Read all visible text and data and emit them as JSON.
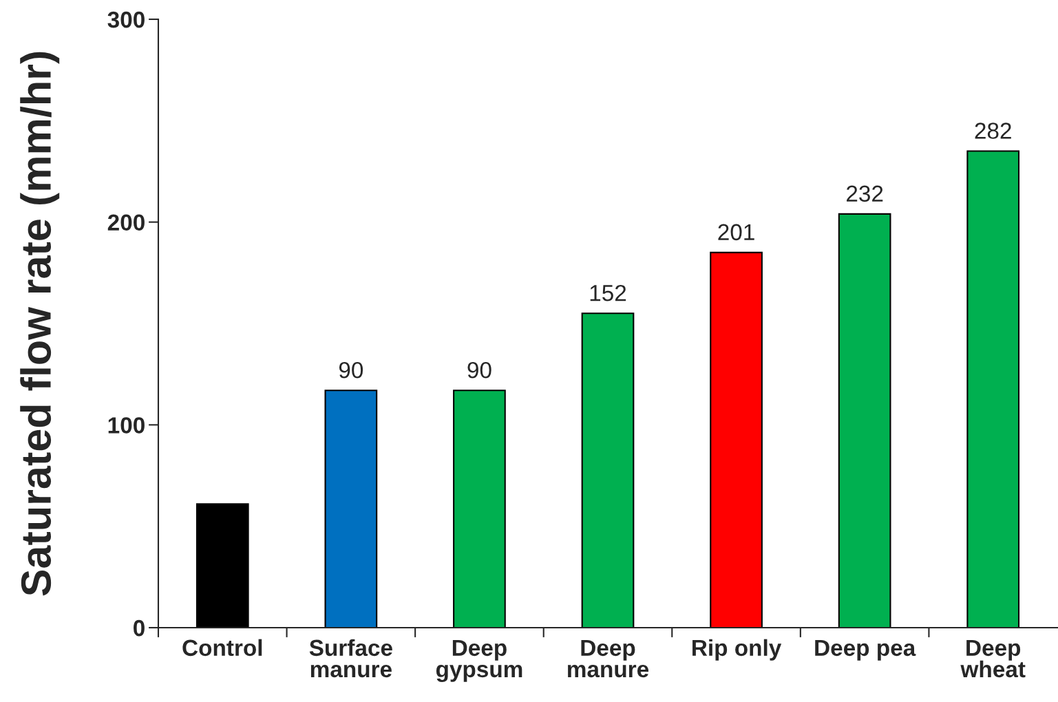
{
  "chart_data": {
    "type": "bar",
    "ylabel": "Saturated flow rate (mm/hr)",
    "categories": [
      "Control",
      "Surface\nmanure",
      "Deep\ngypsum",
      "Deep\nmanure",
      "Rip only",
      "Deep pea",
      "Deep\nwheat"
    ],
    "values": [
      61,
      117,
      117,
      155,
      185,
      204,
      235
    ],
    "colors": [
      "#000000",
      "#0070c0",
      "#00b050",
      "#00b050",
      "#ff0000",
      "#00b050",
      "#00b050"
    ],
    "annotations": [
      {
        "text": "90",
        "x": "Surface\nmanure",
        "y": 117
      },
      {
        "text": "90",
        "x": "Deep\ngypsum",
        "y": 117
      },
      {
        "text": "152",
        "x": "Deep\nmanure",
        "y": 155
      },
      {
        "text": "201",
        "x": "Rip only",
        "y": 185
      },
      {
        "text": "232",
        "x": "Deep pea",
        "y": 204
      },
      {
        "text": "282",
        "x": "Deep\nwheat",
        "y": 235
      }
    ],
    "ylim": [
      0,
      300
    ],
    "yticks": [
      0,
      100,
      200,
      300
    ],
    "grid": false,
    "legend": false
  }
}
